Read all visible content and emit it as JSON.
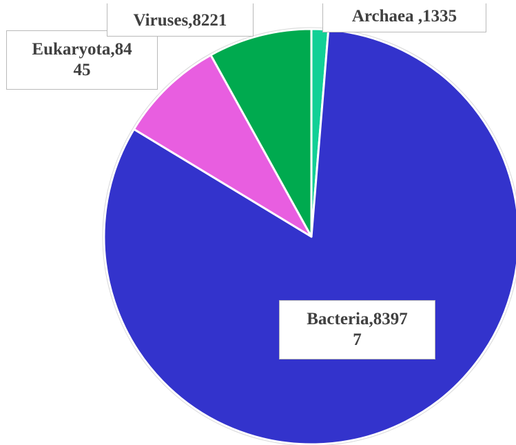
{
  "chart_data": {
    "type": "pie",
    "slices": [
      {
        "label": "Bacteria,8397\n7",
        "name": "Bacteria",
        "value": 83977,
        "color": "#3333cc"
      },
      {
        "label": "Eukaryota,84\n45",
        "name": "Eukaryota",
        "value": 8445,
        "color": "#e85ee0"
      },
      {
        "label": "Viruses,8221",
        "name": "Viruses",
        "value": 8221,
        "color": "#00aa4f"
      },
      {
        "label": "Archaea ,1335",
        "name": "Archaea",
        "value": 1335,
        "color": "#12d096"
      }
    ],
    "start": "12 o'clock",
    "direction": "clockwise",
    "slice_order": [
      "Archaea",
      "Bacteria",
      "Eukaryota",
      "Viruses"
    ]
  },
  "labels": {
    "bacteria": "Bacteria,8397\n7",
    "eukaryota": "Eukaryota,84\n45",
    "viruses": "Viruses,8221",
    "archaea": "Archaea ,1335"
  }
}
